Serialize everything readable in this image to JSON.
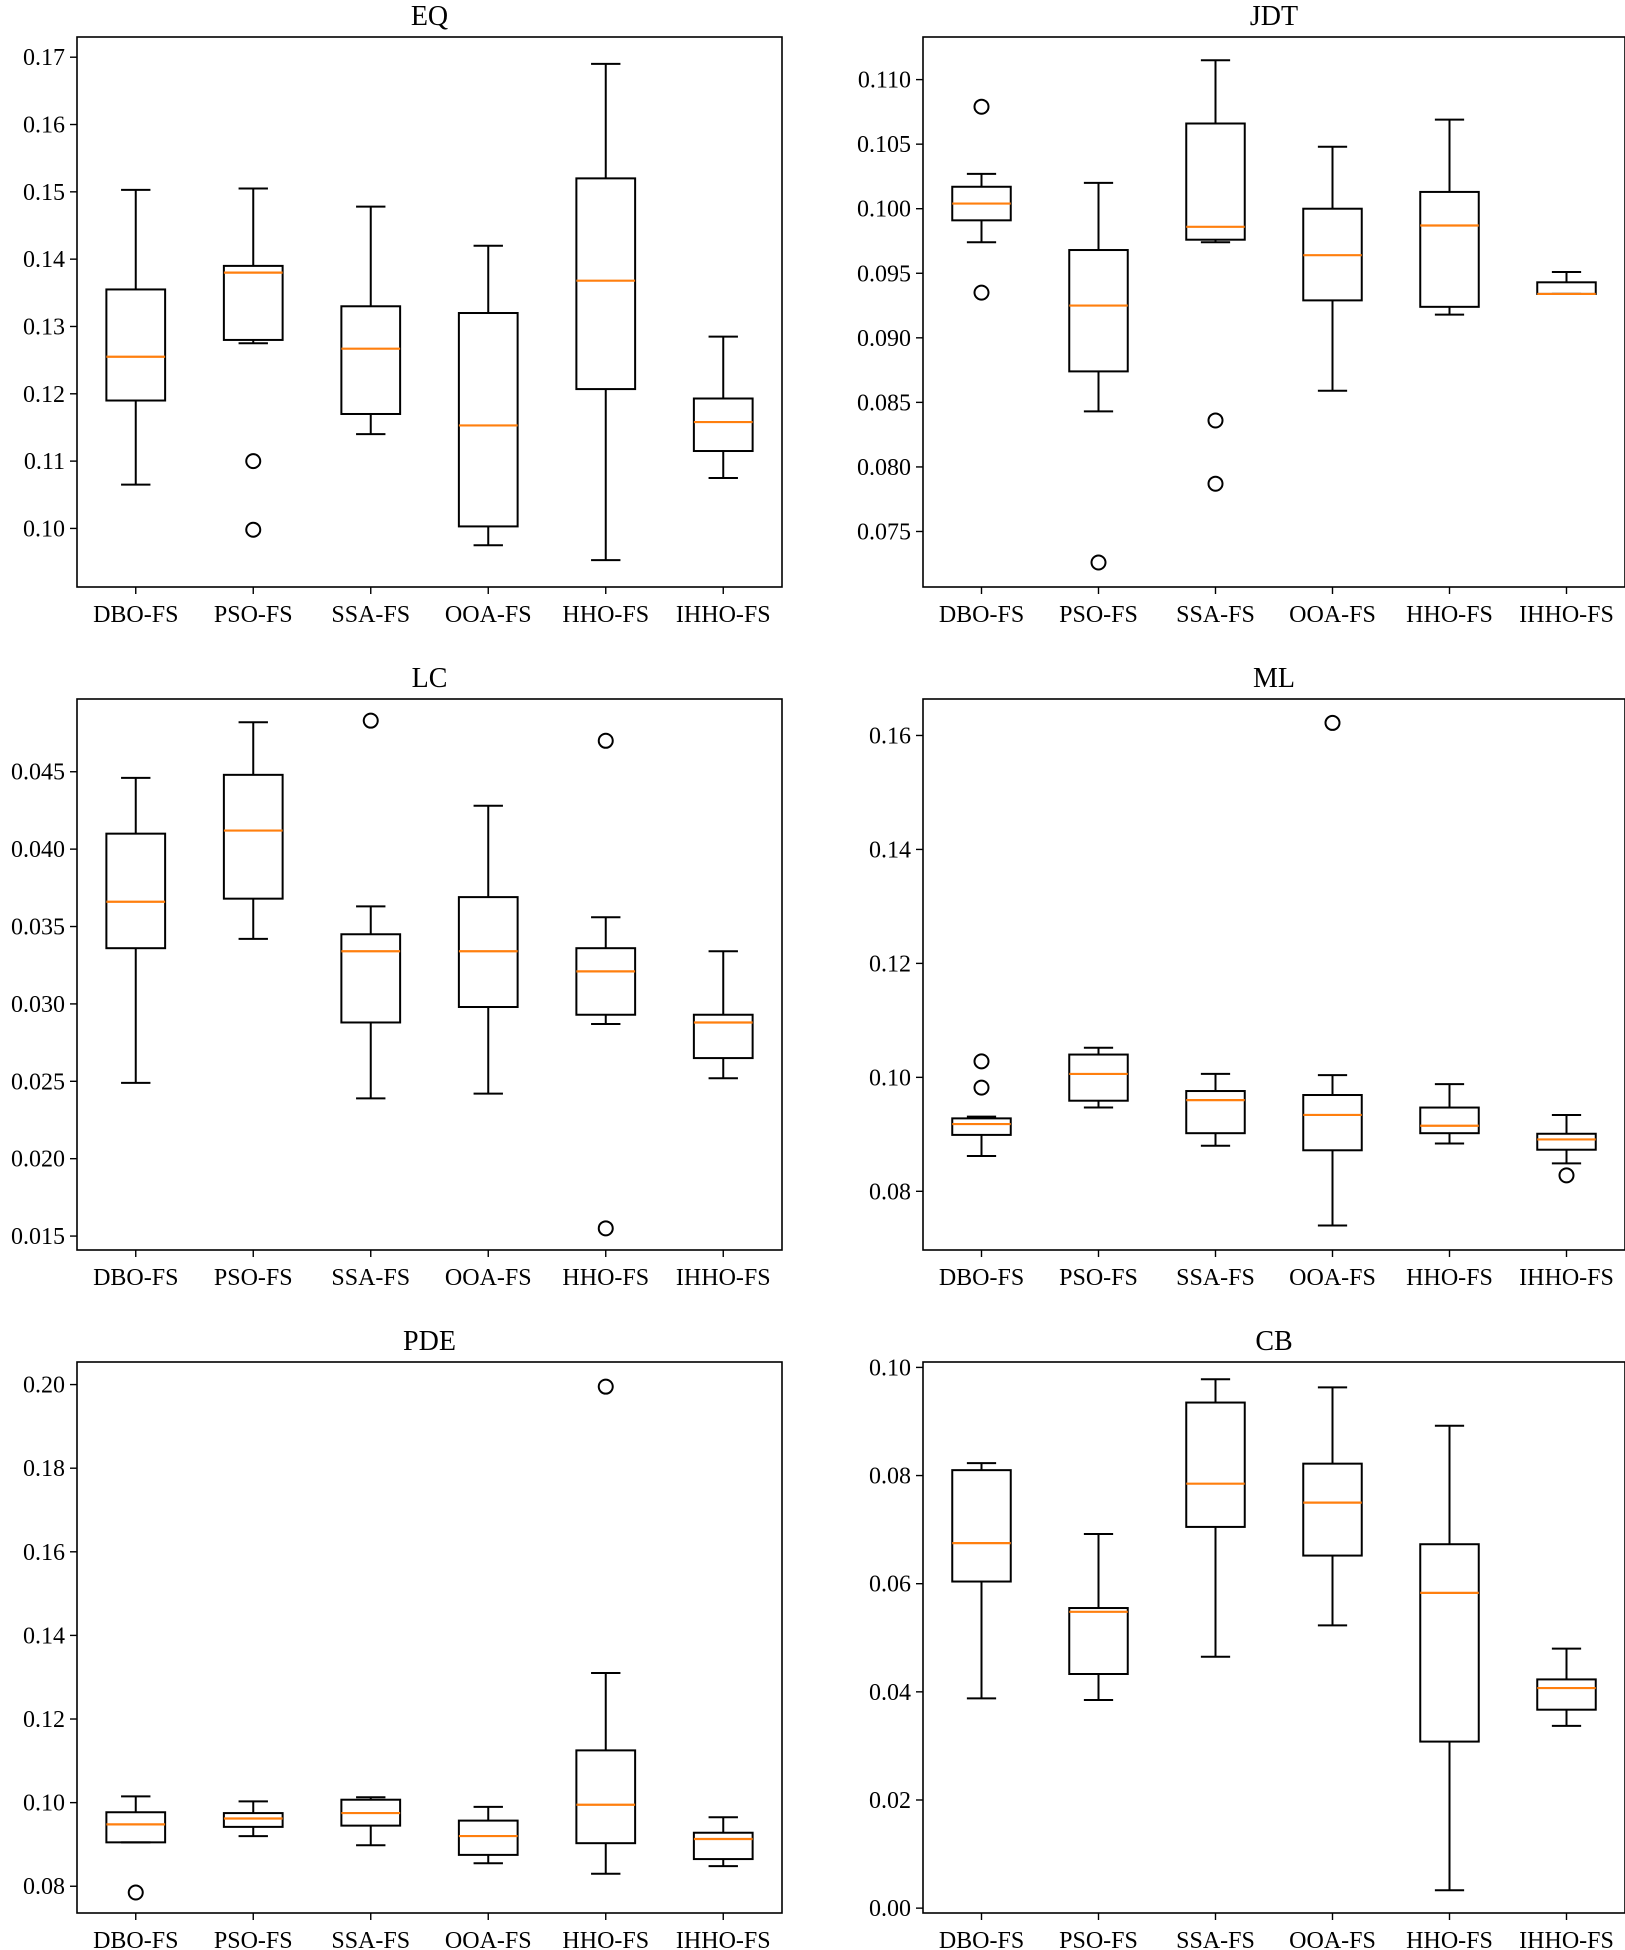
{
  "colors": {
    "median": "#ff7f0e",
    "box": "#000000",
    "background": "#ffffff"
  },
  "chart_data": [
    {
      "type": "box",
      "title": "EQ",
      "categories": [
        "DBO-FS",
        "PSO-FS",
        "SSA-FS",
        "OOA-FS",
        "HHO-FS",
        "IHHO-FS"
      ],
      "ylim": [
        0.0913,
        0.173
      ],
      "yticks": [
        0.1,
        0.11,
        0.12,
        0.13,
        0.14,
        0.15,
        0.16,
        0.17
      ],
      "ytick_labels": [
        "0.10",
        "0.11",
        "0.12",
        "0.13",
        "0.14",
        "0.15",
        "0.16",
        "0.17"
      ],
      "boxes": [
        {
          "whislo": 0.1065,
          "q1": 0.119,
          "med": 0.1255,
          "q3": 0.1355,
          "whishi": 0.1503,
          "fliers": []
        },
        {
          "whislo": 0.1275,
          "q1": 0.128,
          "med": 0.138,
          "q3": 0.139,
          "whishi": 0.1505,
          "fliers": [
            0.11,
            0.0998
          ]
        },
        {
          "whislo": 0.114,
          "q1": 0.117,
          "med": 0.1267,
          "q3": 0.133,
          "whishi": 0.1478,
          "fliers": []
        },
        {
          "whislo": 0.0975,
          "q1": 0.1003,
          "med": 0.1153,
          "q3": 0.132,
          "whishi": 0.142,
          "fliers": []
        },
        {
          "whislo": 0.0953,
          "q1": 0.1207,
          "med": 0.1368,
          "q3": 0.152,
          "whishi": 0.169,
          "fliers": []
        },
        {
          "whislo": 0.1075,
          "q1": 0.1115,
          "med": 0.1158,
          "q3": 0.1193,
          "whishi": 0.1285,
          "fliers": []
        }
      ]
    },
    {
      "type": "box",
      "title": "JDT",
      "categories": [
        "DBO-FS",
        "PSO-FS",
        "SSA-FS",
        "OOA-FS",
        "HHO-FS",
        "IHHO-FS"
      ],
      "ylim": [
        0.0707,
        0.1133
      ],
      "yticks": [
        0.075,
        0.08,
        0.085,
        0.09,
        0.095,
        0.1,
        0.105,
        0.11
      ],
      "ytick_labels": [
        "0.075",
        "0.080",
        "0.085",
        "0.090",
        "0.095",
        "0.100",
        "0.105",
        "0.110"
      ],
      "boxes": [
        {
          "whislo": 0.0974,
          "q1": 0.0991,
          "med": 0.1004,
          "q3": 0.1017,
          "whishi": 0.1027,
          "fliers": [
            0.1079,
            0.0935
          ]
        },
        {
          "whislo": 0.0843,
          "q1": 0.0874,
          "med": 0.0925,
          "q3": 0.0968,
          "whishi": 0.102,
          "fliers": [
            0.0726
          ]
        },
        {
          "whislo": 0.0974,
          "q1": 0.0976,
          "med": 0.0986,
          "q3": 0.1066,
          "whishi": 0.1115,
          "fliers": [
            0.0836,
            0.0787
          ]
        },
        {
          "whislo": 0.0859,
          "q1": 0.0929,
          "med": 0.0964,
          "q3": 0.1,
          "whishi": 0.1048,
          "fliers": []
        },
        {
          "whislo": 0.0918,
          "q1": 0.0924,
          "med": 0.0987,
          "q3": 0.1013,
          "whishi": 0.1069,
          "fliers": []
        },
        {
          "whislo": 0.0934,
          "q1": 0.0934,
          "med": 0.0934,
          "q3": 0.0943,
          "whishi": 0.0951,
          "fliers": []
        }
      ]
    },
    {
      "type": "box",
      "title": "LC",
      "categories": [
        "DBO-FS",
        "PSO-FS",
        "SSA-FS",
        "OOA-FS",
        "HHO-FS",
        "IHHO-FS"
      ],
      "ylim": [
        0.0141,
        0.0497
      ],
      "yticks": [
        0.015,
        0.02,
        0.025,
        0.03,
        0.035,
        0.04,
        0.045
      ],
      "ytick_labels": [
        "0.015",
        "0.020",
        "0.025",
        "0.030",
        "0.035",
        "0.040",
        "0.045"
      ],
      "boxes": [
        {
          "whislo": 0.0249,
          "q1": 0.0336,
          "med": 0.0366,
          "q3": 0.041,
          "whishi": 0.0446,
          "fliers": []
        },
        {
          "whislo": 0.0342,
          "q1": 0.0368,
          "med": 0.0412,
          "q3": 0.0448,
          "whishi": 0.0482,
          "fliers": []
        },
        {
          "whislo": 0.0239,
          "q1": 0.0288,
          "med": 0.0334,
          "q3": 0.0345,
          "whishi": 0.0363,
          "fliers": [
            0.0483
          ]
        },
        {
          "whislo": 0.0242,
          "q1": 0.0298,
          "med": 0.0334,
          "q3": 0.0369,
          "whishi": 0.0428,
          "fliers": []
        },
        {
          "whislo": 0.0287,
          "q1": 0.0293,
          "med": 0.0321,
          "q3": 0.0336,
          "whishi": 0.0356,
          "fliers": [
            0.047,
            0.0155
          ]
        },
        {
          "whislo": 0.0252,
          "q1": 0.0265,
          "med": 0.0288,
          "q3": 0.0293,
          "whishi": 0.0334,
          "fliers": []
        }
      ]
    },
    {
      "type": "box",
      "title": "ML",
      "categories": [
        "DBO-FS",
        "PSO-FS",
        "SSA-FS",
        "OOA-FS",
        "HHO-FS",
        "IHHO-FS"
      ],
      "ylim": [
        0.0697,
        0.1664
      ],
      "yticks": [
        0.08,
        0.1,
        0.12,
        0.14,
        0.16
      ],
      "ytick_labels": [
        "0.08",
        "0.10",
        "0.12",
        "0.14",
        "0.16"
      ],
      "boxes": [
        {
          "whislo": 0.0862,
          "q1": 0.0899,
          "med": 0.0918,
          "q3": 0.0928,
          "whishi": 0.0931,
          "fliers": [
            0.0982,
            0.1028
          ]
        },
        {
          "whislo": 0.0947,
          "q1": 0.0959,
          "med": 0.1006,
          "q3": 0.104,
          "whishi": 0.1052,
          "fliers": []
        },
        {
          "whislo": 0.088,
          "q1": 0.0902,
          "med": 0.096,
          "q3": 0.0976,
          "whishi": 0.1006,
          "fliers": []
        },
        {
          "whislo": 0.074,
          "q1": 0.0872,
          "med": 0.0934,
          "q3": 0.0969,
          "whishi": 0.1004,
          "fliers": [
            0.1622
          ]
        },
        {
          "whislo": 0.0884,
          "q1": 0.0902,
          "med": 0.0915,
          "q3": 0.0947,
          "whishi": 0.0988,
          "fliers": []
        },
        {
          "whislo": 0.0849,
          "q1": 0.0873,
          "med": 0.0891,
          "q3": 0.0901,
          "whishi": 0.0934,
          "fliers": [
            0.0828
          ]
        }
      ]
    },
    {
      "type": "box",
      "title": "PDE",
      "categories": [
        "DBO-FS",
        "PSO-FS",
        "SSA-FS",
        "OOA-FS",
        "HHO-FS",
        "IHHO-FS"
      ],
      "ylim": [
        0.0736,
        0.2054
      ],
      "yticks": [
        0.08,
        0.1,
        0.12,
        0.14,
        0.16,
        0.18,
        0.2
      ],
      "ytick_labels": [
        "0.08",
        "0.10",
        "0.12",
        "0.14",
        "0.16",
        "0.18",
        "0.20"
      ],
      "boxes": [
        {
          "whislo": 0.0905,
          "q1": 0.0905,
          "med": 0.0948,
          "q3": 0.0977,
          "whishi": 0.1015,
          "fliers": [
            0.0785
          ]
        },
        {
          "whislo": 0.092,
          "q1": 0.0942,
          "med": 0.0962,
          "q3": 0.0975,
          "whishi": 0.1003,
          "fliers": []
        },
        {
          "whislo": 0.0898,
          "q1": 0.0945,
          "med": 0.0975,
          "q3": 0.1007,
          "whishi": 0.1013,
          "fliers": []
        },
        {
          "whislo": 0.0855,
          "q1": 0.0875,
          "med": 0.092,
          "q3": 0.0957,
          "whishi": 0.099,
          "fliers": []
        },
        {
          "whislo": 0.083,
          "q1": 0.0903,
          "med": 0.0995,
          "q3": 0.1125,
          "whishi": 0.131,
          "fliers": [
            0.1995
          ]
        },
        {
          "whislo": 0.0848,
          "q1": 0.0865,
          "med": 0.0913,
          "q3": 0.0928,
          "whishi": 0.0965,
          "fliers": []
        }
      ]
    },
    {
      "type": "box",
      "title": "CB",
      "categories": [
        "DBO-FS",
        "PSO-FS",
        "SSA-FS",
        "OOA-FS",
        "HHO-FS",
        "IHHO-FS"
      ],
      "ylim": [
        -0.0009,
        0.101
      ],
      "yticks": [
        0.0,
        0.02,
        0.04,
        0.06,
        0.08,
        0.1
      ],
      "ytick_labels": [
        "0.00",
        "0.02",
        "0.04",
        "0.06",
        "0.08",
        "0.10"
      ],
      "boxes": [
        {
          "whislo": 0.0388,
          "q1": 0.0604,
          "med": 0.0675,
          "q3": 0.081,
          "whishi": 0.0823,
          "fliers": []
        },
        {
          "whislo": 0.0385,
          "q1": 0.0433,
          "med": 0.0548,
          "q3": 0.0555,
          "whishi": 0.0692,
          "fliers": []
        },
        {
          "whislo": 0.0465,
          "q1": 0.0705,
          "med": 0.0785,
          "q3": 0.0935,
          "whishi": 0.0978,
          "fliers": []
        },
        {
          "whislo": 0.0523,
          "q1": 0.0652,
          "med": 0.075,
          "q3": 0.0822,
          "whishi": 0.0963,
          "fliers": []
        },
        {
          "whislo": 0.0033,
          "q1": 0.0308,
          "med": 0.0583,
          "q3": 0.0673,
          "whishi": 0.0892,
          "fliers": []
        },
        {
          "whislo": 0.0337,
          "q1": 0.0367,
          "med": 0.0407,
          "q3": 0.0423,
          "whishi": 0.048,
          "fliers": []
        }
      ]
    }
  ]
}
